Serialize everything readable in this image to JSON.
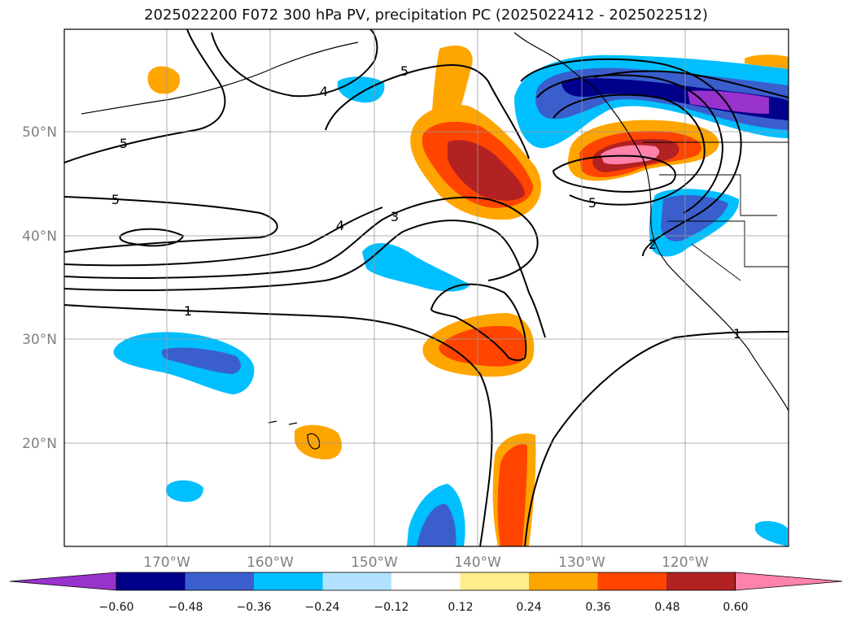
{
  "title": "2025022200 F072 300 hPa PV, precipitation PC (2025022412 - 2025022512)",
  "map": {
    "lon_labels": [
      "170°W",
      "160°W",
      "150°W",
      "140°W",
      "130°W",
      "120°W"
    ],
    "lat_labels": [
      "50°N",
      "40°N",
      "30°N",
      "20°N"
    ],
    "contour_labels": [
      "5",
      "4",
      "5",
      "5",
      "4",
      "3",
      "5",
      "2",
      "1",
      "1"
    ],
    "grid": true
  },
  "colorbar": {
    "tick_labels": [
      "−0.60",
      "−0.48",
      "−0.36",
      "−0.24",
      "−0.12",
      "0.12",
      "0.24",
      "0.36",
      "0.48",
      "0.60"
    ],
    "colors": [
      "#9932cc",
      "#00008b",
      "#3a5fcd",
      "#00bfff",
      "#b0e2ff",
      "#ffffff",
      "#ffec8b",
      "#ffa500",
      "#ff4500",
      "#b22222",
      "#ff82ab"
    ]
  }
}
